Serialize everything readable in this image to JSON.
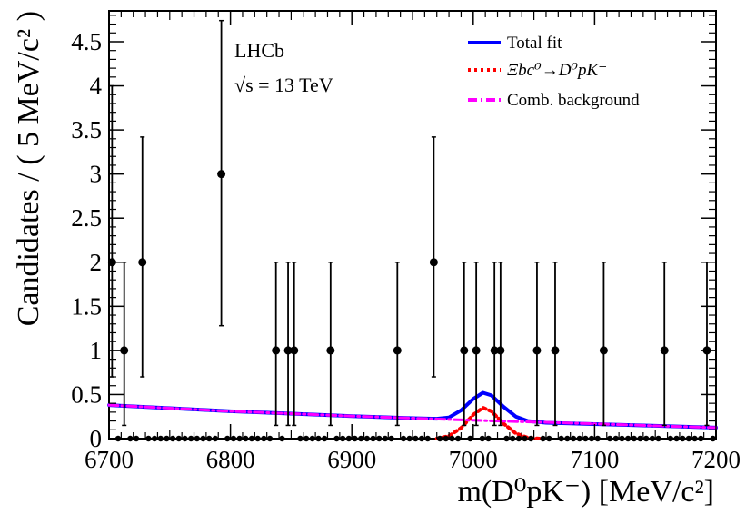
{
  "chart_data": {
    "type": "scatter",
    "xlabel": "m(D⁰pK⁻) [MeV/c²]",
    "ylabel": "Candidates / ( 5 MeV/c² )",
    "xlim": [
      6700,
      7200
    ],
    "ylim": [
      0,
      4.85
    ],
    "xticks": [
      "6700",
      "6800",
      "6900",
      "7000",
      "7100",
      "7200"
    ],
    "yticks": [
      "0",
      "0.5",
      "1",
      "1.5",
      "2",
      "2.5",
      "3",
      "3.5",
      "4",
      "4.5"
    ],
    "annotations": [
      "LHCb",
      "√s = 13 TeV"
    ],
    "legend_position": "top-right",
    "legend": [
      {
        "label": "Total fit",
        "color": "#0000ff",
        "style": "solid"
      },
      {
        "label": "Ξbc⁰→D⁰pK⁻",
        "color": "#ff0000",
        "style": "dotted"
      },
      {
        "label": "Comb. background",
        "color": "#ff00ff",
        "style": "dash-dot"
      }
    ],
    "series": [
      {
        "name": "Data",
        "color": "#000000",
        "points": [
          {
            "x": 6702.5,
            "y": 2,
            "err_lo": 1.3,
            "err_hi": 2.0
          },
          {
            "x": 6712.5,
            "y": 1,
            "err_lo": 0.85,
            "err_hi": 1.0
          },
          {
            "x": 6727.5,
            "y": 2,
            "err_lo": 1.3,
            "err_hi": 1.42
          },
          {
            "x": 6792.5,
            "y": 3,
            "err_lo": 1.72,
            "err_hi": 1.74
          },
          {
            "x": 6837.5,
            "y": 1,
            "err_lo": 0.85,
            "err_hi": 1.0
          },
          {
            "x": 6847.5,
            "y": 1,
            "err_lo": 0.85,
            "err_hi": 1.0
          },
          {
            "x": 6852.5,
            "y": 1,
            "err_lo": 0.85,
            "err_hi": 1.0
          },
          {
            "x": 6882.5,
            "y": 1,
            "err_lo": 0.85,
            "err_hi": 1.0
          },
          {
            "x": 6937.5,
            "y": 1,
            "err_lo": 0.85,
            "err_hi": 1.0
          },
          {
            "x": 6967.5,
            "y": 2,
            "err_lo": 1.3,
            "err_hi": 1.42
          },
          {
            "x": 6992.5,
            "y": 1,
            "err_lo": 0.85,
            "err_hi": 1.0
          },
          {
            "x": 7002.5,
            "y": 1,
            "err_lo": 0.85,
            "err_hi": 1.0
          },
          {
            "x": 7017.5,
            "y": 1,
            "err_lo": 0.85,
            "err_hi": 1.0
          },
          {
            "x": 7022.5,
            "y": 1,
            "err_lo": 0.85,
            "err_hi": 1.0
          },
          {
            "x": 7052.5,
            "y": 1,
            "err_lo": 0.85,
            "err_hi": 1.0
          },
          {
            "x": 7067.5,
            "y": 1,
            "err_lo": 0.85,
            "err_hi": 1.0
          },
          {
            "x": 7107.5,
            "y": 1,
            "err_lo": 0.85,
            "err_hi": 1.0
          },
          {
            "x": 7157.5,
            "y": 1,
            "err_lo": 0.85,
            "err_hi": 1.0
          },
          {
            "x": 7192.5,
            "y": 1,
            "err_lo": 0.85,
            "err_hi": 1.0
          }
        ],
        "zero_bins": "all remaining 5 MeV bins between 6700 and 7200 have 0 entries"
      },
      {
        "name": "Total fit",
        "color": "#0000ff",
        "x": [
          6700,
          6750,
          6800,
          6850,
          6900,
          6950,
          6970,
          6980,
          6990,
          7000,
          7008,
          7015,
          7025,
          7035,
          7045,
          7060,
          7100,
          7150,
          7200
        ],
        "y": [
          0.38,
          0.345,
          0.31,
          0.283,
          0.255,
          0.232,
          0.225,
          0.24,
          0.32,
          0.45,
          0.52,
          0.49,
          0.36,
          0.25,
          0.2,
          0.18,
          0.165,
          0.145,
          0.125
        ]
      },
      {
        "name": "Ξbc⁰→D⁰pK⁻",
        "color": "#ff0000",
        "x": [
          6970,
          6980,
          6990,
          7000,
          7008,
          7015,
          7025,
          7035,
          7045,
          7055
        ],
        "y": [
          0.0,
          0.03,
          0.12,
          0.27,
          0.35,
          0.31,
          0.17,
          0.06,
          0.01,
          0.0
        ]
      },
      {
        "name": "Comb. background",
        "color": "#ff00ff",
        "x": [
          6700,
          6750,
          6800,
          6850,
          6900,
          6950,
          7000,
          7050,
          7100,
          7150,
          7200
        ],
        "y": [
          0.38,
          0.345,
          0.31,
          0.283,
          0.255,
          0.232,
          0.208,
          0.188,
          0.168,
          0.145,
          0.125
        ]
      }
    ]
  }
}
